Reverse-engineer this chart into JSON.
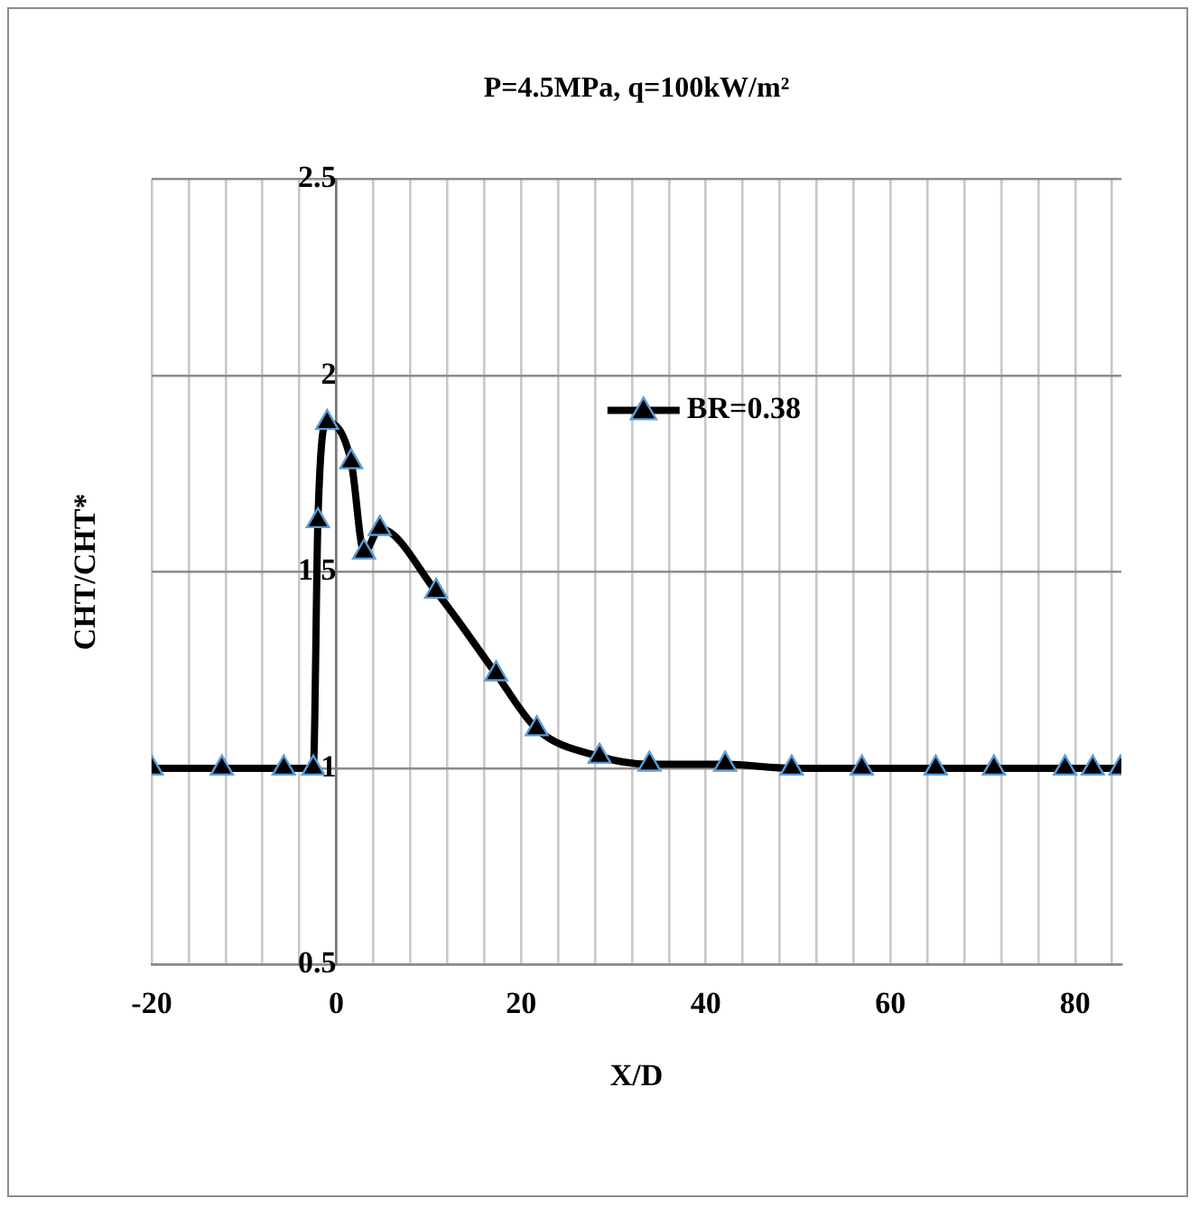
{
  "chart_data": {
    "type": "line",
    "title": "P=4.5MPa, q=100kW/m²",
    "xlabel": "X/D",
    "ylabel": "CHT/CHT*",
    "x": [
      -20,
      -12.4,
      -5.7,
      -2.5,
      -2.0,
      -1.0,
      1.6,
      3.0,
      4.7,
      10.8,
      17.3,
      21.7,
      28.5,
      33.9,
      42.1,
      49.3,
      56.9,
      64.9,
      71.2,
      78.9,
      81.9,
      84.9
    ],
    "series": [
      {
        "name": "BR=0.38",
        "color": "#000000",
        "values": [
          1.0,
          1.0,
          1.0,
          1.0,
          1.63,
          1.88,
          1.78,
          1.55,
          1.61,
          1.45,
          1.24,
          1.1,
          1.03,
          1.01,
          1.01,
          1.0,
          1.0,
          1.0,
          1.0,
          1.0,
          1.0,
          1.0
        ]
      }
    ],
    "xlim": [
      -20,
      85
    ],
    "xticks": [
      -20,
      {
        "value": -16,
        "label": null
      },
      {
        "value": -12,
        "label": null
      },
      {
        "value": -8,
        "label": null
      },
      {
        "value": -4,
        "label": null
      },
      0,
      {
        "value": 4,
        "label": null
      },
      {
        "value": 8,
        "label": null
      },
      {
        "value": 12,
        "label": null
      },
      {
        "value": 16,
        "label": null
      },
      20,
      {
        "value": 24,
        "label": null
      },
      {
        "value": 28,
        "label": null
      },
      {
        "value": 32,
        "label": null
      },
      {
        "value": 36,
        "label": null
      },
      40,
      {
        "value": 44,
        "label": null
      },
      {
        "value": 48,
        "label": null
      },
      {
        "value": 52,
        "label": null
      },
      {
        "value": 56,
        "label": null
      },
      60,
      {
        "value": 64,
        "label": null
      },
      {
        "value": 68,
        "label": null
      },
      {
        "value": 72,
        "label": null
      },
      {
        "value": 76,
        "label": null
      },
      80,
      {
        "value": 84,
        "label": null
      }
    ],
    "ylim": [
      0.5,
      2.5
    ],
    "yticks": [
      0.5,
      1,
      1.5,
      2,
      2.5
    ],
    "grid": true,
    "legend": "top right",
    "marker": "triangle",
    "line_style": "solid"
  }
}
